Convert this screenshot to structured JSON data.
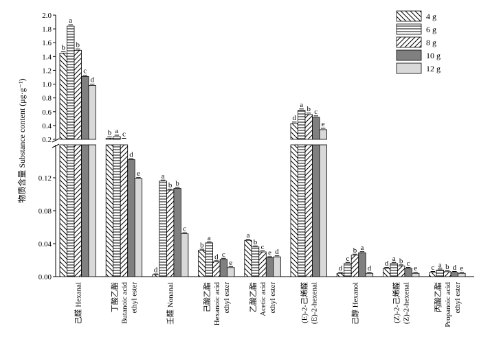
{
  "chart_data": {
    "type": "bar",
    "ylabel": "物质含量 Substance content (μg·g⁻¹)",
    "axis_break": true,
    "lower_axis": {
      "ylim": [
        0,
        0.16
      ],
      "ticks": [
        "0.00",
        "0.04",
        "0.08",
        "0.12"
      ]
    },
    "upper_axis": {
      "ylim": [
        0.2,
        2.0
      ],
      "ticks": [
        "0.2",
        "0.4",
        "0.6",
        "0.8",
        "1.0",
        "1.2",
        "1.4",
        "1.6",
        "1.8",
        "2.0"
      ]
    },
    "legend_position": "top-right",
    "series": [
      {
        "name": "4 g",
        "pattern": "diagonal-back",
        "color": "#ffffff"
      },
      {
        "name": "6 g",
        "pattern": "horizontal",
        "color": "#ffffff"
      },
      {
        "name": "8 g",
        "pattern": "diagonal-fwd",
        "color": "#ffffff"
      },
      {
        "name": "10 g",
        "pattern": "solid",
        "color": "#808080"
      },
      {
        "name": "12 g",
        "pattern": "solid",
        "color": "#d9d9d9"
      }
    ],
    "categories": [
      {
        "zh": "己醛",
        "en": [
          "Hexanal"
        ],
        "inline": true,
        "values": [
          1.45,
          1.84,
          1.49,
          1.11,
          0.98
        ],
        "letters": [
          "b",
          "a",
          "b",
          "c",
          "d"
        ]
      },
      {
        "zh": "丁酸乙酯",
        "en": [
          "Butanoic acid",
          "ethyl ester"
        ],
        "inline": false,
        "values": [
          0.215,
          0.24,
          0.195,
          0.142,
          0.119
        ],
        "letters": [
          "b",
          "a",
          "c",
          "d",
          "e"
        ]
      },
      {
        "zh": "壬醛",
        "en": [
          "Nonanal"
        ],
        "inline": true,
        "values": [
          0.002,
          0.116,
          0.105,
          0.107,
          0.052
        ],
        "letters": [
          "d",
          "a",
          "b",
          "b",
          "c"
        ]
      },
      {
        "zh": "己酸乙酯",
        "en": [
          "Hexanoic acid",
          "ethyl ester"
        ],
        "inline": false,
        "values": [
          0.032,
          0.041,
          0.018,
          0.021,
          0.011
        ],
        "letters": [
          "b",
          "a",
          "d",
          "c",
          "e"
        ]
      },
      {
        "zh": "乙酸乙酯",
        "en": [
          "Acetic acid",
          "ethyl ester"
        ],
        "inline": false,
        "values": [
          0.044,
          0.036,
          0.03,
          0.023,
          0.024
        ],
        "letters": [
          "a",
          "b",
          "c",
          "e",
          "d"
        ]
      },
      {
        "zh": "(E)-2-己烯醛",
        "en": [
          "(E)-2-hexenal"
        ],
        "inline": false,
        "values": [
          0.43,
          0.62,
          0.56,
          0.52,
          0.34
        ],
        "letters": [
          "d",
          "a",
          "b",
          "c",
          "e"
        ]
      },
      {
        "zh": "己醇",
        "en": [
          "Hexanol"
        ],
        "inline": true,
        "values": [
          0.004,
          0.016,
          0.026,
          0.029,
          0.004
        ],
        "letters": [
          "d",
          "c",
          "b",
          "a",
          "d"
        ]
      },
      {
        "zh": "(Z)-2-己烯醛",
        "en": [
          "(Z)-2-hexenal"
        ],
        "inline": false,
        "values": [
          0.01,
          0.016,
          0.013,
          0.01,
          0.004
        ],
        "letters": [
          "d",
          "a",
          "b",
          "c",
          "e"
        ]
      },
      {
        "zh": "丙酸乙酯",
        "en": [
          "Propanoic acid",
          "ethyl ester"
        ],
        "inline": false,
        "values": [
          0.005,
          0.008,
          0.006,
          0.005,
          0.004
        ],
        "letters": [
          "c",
          "a",
          "b",
          "d",
          "e"
        ]
      }
    ]
  }
}
